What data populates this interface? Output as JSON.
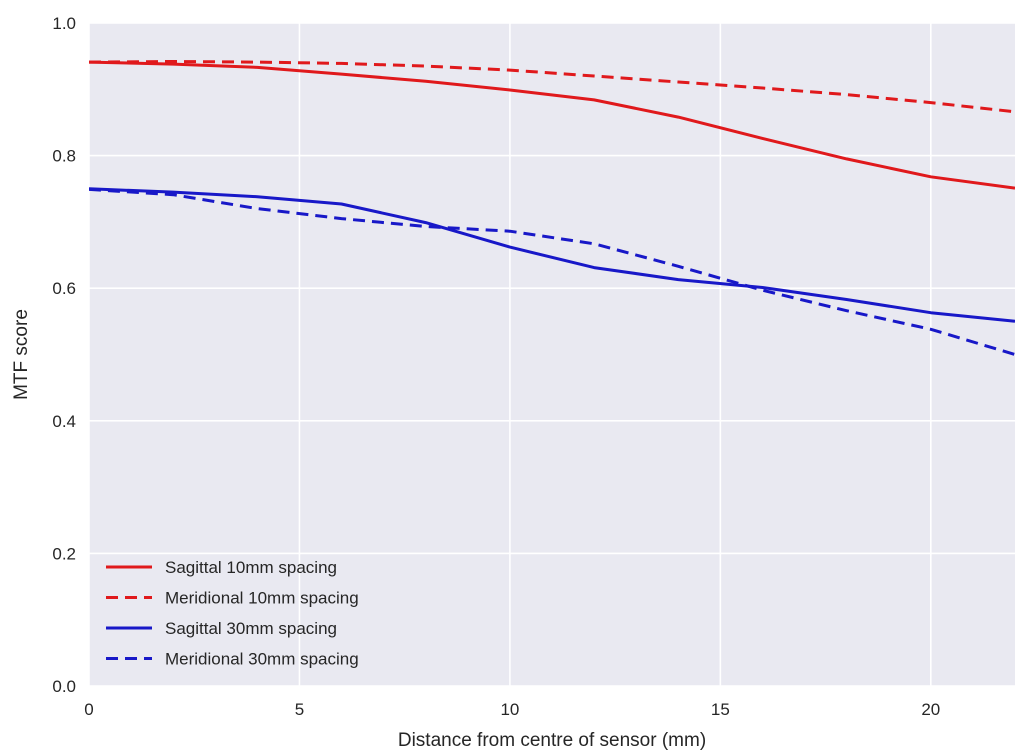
{
  "chart_data": {
    "type": "line",
    "title": "",
    "xlabel": "Distance from centre of sensor (mm)",
    "ylabel": "MTF score",
    "xlim": [
      0,
      22
    ],
    "ylim": [
      0.0,
      1.0
    ],
    "xticks": [
      0,
      5,
      10,
      15,
      20
    ],
    "yticks": [
      0.0,
      0.2,
      0.4,
      0.6,
      0.8,
      1.0
    ],
    "xtick_labels": [
      "0",
      "5",
      "10",
      "15",
      "20"
    ],
    "ytick_labels": [
      "0.0",
      "0.2",
      "0.4",
      "0.6",
      "0.8",
      "1.0"
    ],
    "grid": true,
    "legend_position": "lower-left",
    "style": {
      "plot_background": "#e9e9f1",
      "grid_color": "#ffffff"
    },
    "series": [
      {
        "name": "Sagittal 10mm spacing",
        "color": "#e0191c",
        "dash": "solid",
        "x": [
          0,
          2,
          4,
          6,
          8,
          10,
          12,
          14,
          16,
          18,
          20,
          22
        ],
        "y": [
          0.941,
          0.938,
          0.933,
          0.923,
          0.912,
          0.899,
          0.884,
          0.858,
          0.826,
          0.795,
          0.768,
          0.751
        ]
      },
      {
        "name": "Meridional 10mm spacing",
        "color": "#e0191c",
        "dash": "dashed",
        "x": [
          0,
          2,
          4,
          6,
          8,
          10,
          12,
          14,
          16,
          18,
          20,
          22
        ],
        "y": [
          0.941,
          0.942,
          0.941,
          0.939,
          0.935,
          0.929,
          0.92,
          0.911,
          0.902,
          0.892,
          0.88,
          0.866
        ]
      },
      {
        "name": "Sagittal 30mm spacing",
        "color": "#1818c8",
        "dash": "solid",
        "x": [
          0,
          2,
          4,
          6,
          8,
          10,
          12,
          14,
          16,
          18,
          20,
          22
        ],
        "y": [
          0.75,
          0.745,
          0.738,
          0.727,
          0.699,
          0.662,
          0.631,
          0.613,
          0.601,
          0.583,
          0.563,
          0.55
        ]
      },
      {
        "name": "Meridional 30mm spacing",
        "color": "#1818c8",
        "dash": "dashed",
        "x": [
          0,
          2,
          4,
          6,
          8,
          10,
          12,
          14,
          16,
          18,
          20,
          22
        ],
        "y": [
          0.749,
          0.741,
          0.72,
          0.705,
          0.693,
          0.686,
          0.667,
          0.633,
          0.597,
          0.566,
          0.538,
          0.5
        ]
      }
    ]
  }
}
